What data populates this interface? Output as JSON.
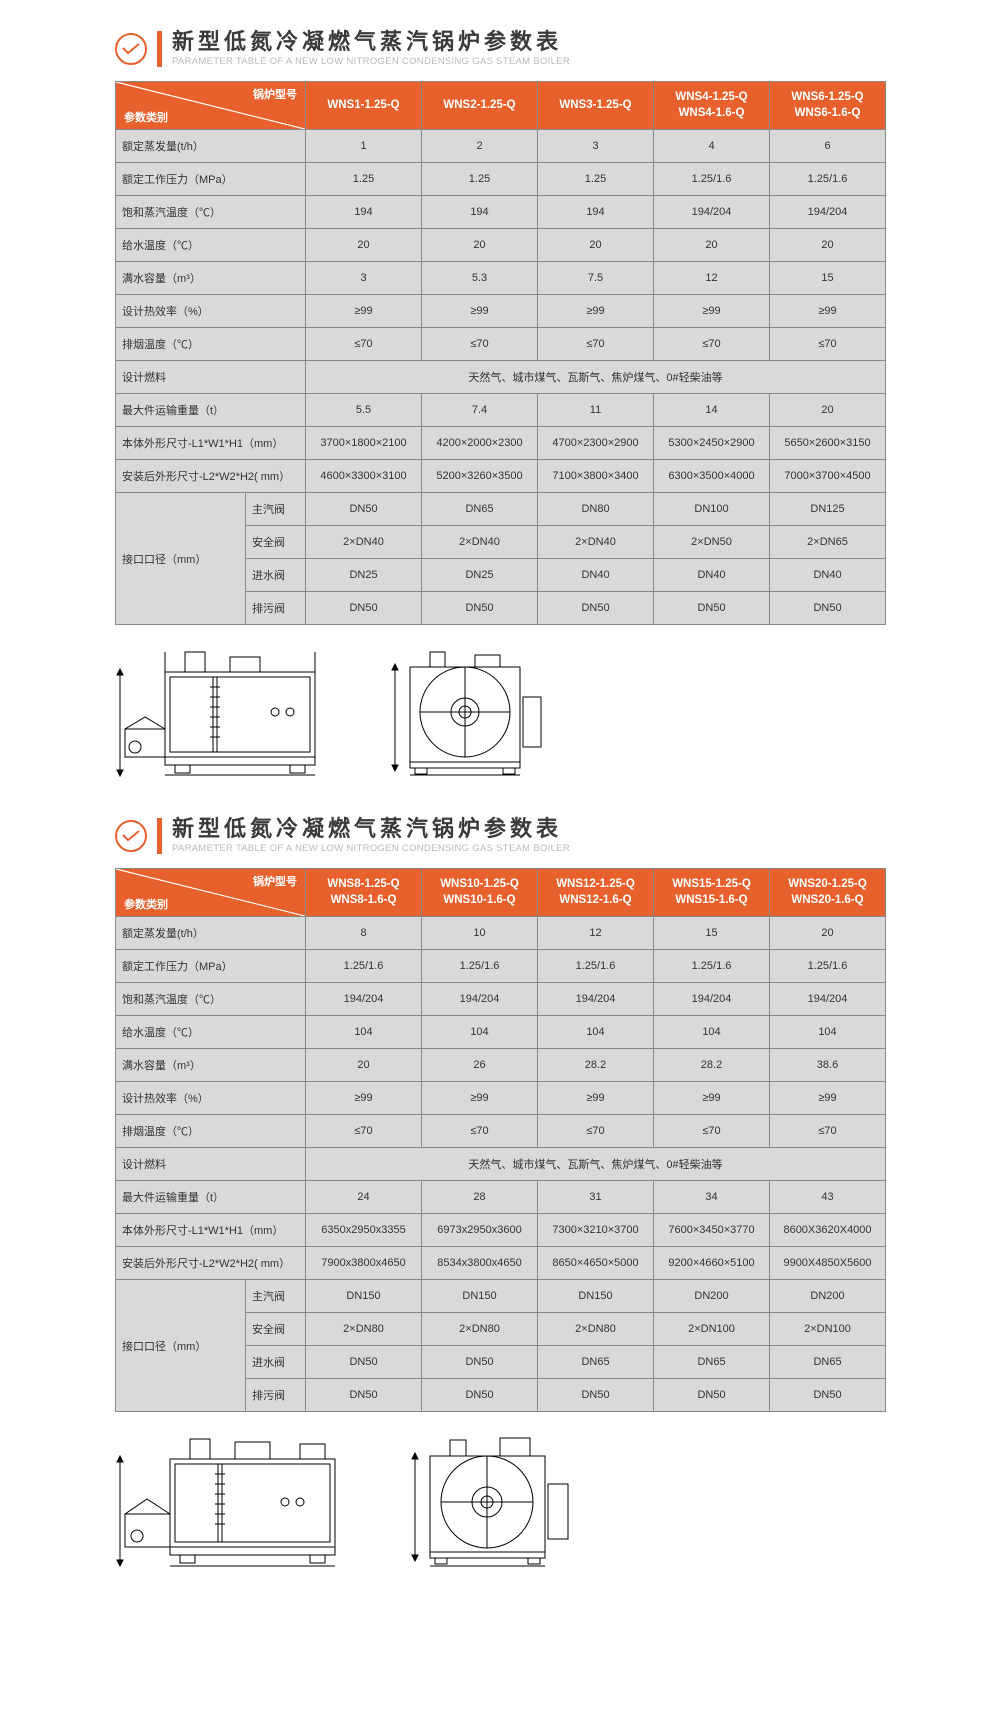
{
  "colors": {
    "accent": "#e8602c",
    "cell_bg": "#d9d9d9",
    "border": "#888888",
    "text": "#333333",
    "heading_text": "#3a3a3a",
    "subtitle": "#b9b9b9"
  },
  "heading": {
    "cn": "新型低氮冷凝燃气蒸汽锅炉参数表",
    "en": "PARAMETER TABLE OF A NEW LOW NITROGEN CONDENSING GAS STEAM BOILER",
    "corner_top": "锅炉型号",
    "corner_bottom": "参数类别"
  },
  "row_labels": {
    "evap": "额定蒸发量(t/h）",
    "pressure": "额定工作压力（MPa）",
    "sat_temp": "饱和蒸汽温度（℃）",
    "feed_temp": "给水温度（℃）",
    "water_vol": "满水容量（m³）",
    "efficiency": "设计热效率（%）",
    "exhaust_temp": "排烟温度（℃）",
    "fuel": "设计燃料",
    "max_weight": "最大件运输重量（t）",
    "body_dim": "本体外形尺寸-L1*W1*H1（mm）",
    "install_dim": "安装后外形尺寸-L2*W2*H2( mm）",
    "port": "接口口径（mm）",
    "steam_valve": "主汽阀",
    "safety_valve": "安全阀",
    "inlet_valve": "进水阀",
    "drain_valve": "排污阀"
  },
  "fuel_text": "天然气、城市煤气、瓦斯气、焦炉煤气、0#轻柴油等",
  "table1": {
    "models": [
      {
        "l1": "WNS1-1.25-Q",
        "l2": ""
      },
      {
        "l1": "WNS2-1.25-Q",
        "l2": ""
      },
      {
        "l1": "WNS3-1.25-Q",
        "l2": ""
      },
      {
        "l1": "WNS4-1.25-Q",
        "l2": "WNS4-1.6-Q"
      },
      {
        "l1": "WNS6-1.25-Q",
        "l2": "WNS6-1.6-Q"
      }
    ],
    "evap": [
      "1",
      "2",
      "3",
      "4",
      "6"
    ],
    "pressure": [
      "1.25",
      "1.25",
      "1.25",
      "1.25/1.6",
      "1.25/1.6"
    ],
    "sat_temp": [
      "194",
      "194",
      "194",
      "194/204",
      "194/204"
    ],
    "feed_temp": [
      "20",
      "20",
      "20",
      "20",
      "20"
    ],
    "water_vol": [
      "3",
      "5.3",
      "7.5",
      "12",
      "15"
    ],
    "efficiency": [
      "≥99",
      "≥99",
      "≥99",
      "≥99",
      "≥99"
    ],
    "exhaust_temp": [
      "≤70",
      "≤70",
      "≤70",
      "≤70",
      "≤70"
    ],
    "max_weight": [
      "5.5",
      "7.4",
      "11",
      "14",
      "20"
    ],
    "body_dim": [
      "3700×1800×2100",
      "4200×2000×2300",
      "4700×2300×2900",
      "5300×2450×2900",
      "5650×2600×3150"
    ],
    "install_dim": [
      "4600×3300×3100",
      "5200×3260×3500",
      "7100×3800×3400",
      "6300×3500×4000",
      "7000×3700×4500"
    ],
    "steam_valve": [
      "DN50",
      "DN65",
      "DN80",
      "DN100",
      "DN125"
    ],
    "safety_valve": [
      "2×DN40",
      "2×DN40",
      "2×DN40",
      "2×DN50",
      "2×DN65"
    ],
    "inlet_valve": [
      "DN25",
      "DN25",
      "DN40",
      "DN40",
      "DN40"
    ],
    "drain_valve": [
      "DN50",
      "DN50",
      "DN50",
      "DN50",
      "DN50"
    ]
  },
  "table2": {
    "models": [
      {
        "l1": "WNS8-1.25-Q",
        "l2": "WNS8-1.6-Q"
      },
      {
        "l1": "WNS10-1.25-Q",
        "l2": "WNS10-1.6-Q"
      },
      {
        "l1": "WNS12-1.25-Q",
        "l2": "WNS12-1.6-Q"
      },
      {
        "l1": "WNS15-1.25-Q",
        "l2": "WNS15-1.6-Q"
      },
      {
        "l1": "WNS20-1.25-Q",
        "l2": "WNS20-1.6-Q"
      }
    ],
    "evap": [
      "8",
      "10",
      "12",
      "15",
      "20"
    ],
    "pressure": [
      "1.25/1.6",
      "1.25/1.6",
      "1.25/1.6",
      "1.25/1.6",
      "1.25/1.6"
    ],
    "sat_temp": [
      "194/204",
      "194/204",
      "194/204",
      "194/204",
      "194/204"
    ],
    "feed_temp": [
      "104",
      "104",
      "104",
      "104",
      "104"
    ],
    "water_vol": [
      "20",
      "26",
      "28.2",
      "28.2",
      "38.6"
    ],
    "efficiency": [
      "≥99",
      "≥99",
      "≥99",
      "≥99",
      "≥99"
    ],
    "exhaust_temp": [
      "≤70",
      "≤70",
      "≤70",
      "≤70",
      "≤70"
    ],
    "max_weight": [
      "24",
      "28",
      "31",
      "34",
      "43"
    ],
    "body_dim": [
      "6350x2950x3355",
      "6973x2950x3600",
      "7300×3210×3700",
      "7600×3450×3770",
      "8600X3620X4000"
    ],
    "install_dim": [
      "7900x3800x4650",
      "8534x3800x4650",
      "8650×4650×5000",
      "9200×4660×5100",
      "9900X4850X5600"
    ],
    "steam_valve": [
      "DN150",
      "DN150",
      "DN150",
      "DN200",
      "DN200"
    ],
    "safety_valve": [
      "2×DN80",
      "2×DN80",
      "2×DN80",
      "2×DN100",
      "2×DN100"
    ],
    "inlet_valve": [
      "DN50",
      "DN50",
      "DN65",
      "DN65",
      "DN65"
    ],
    "drain_valve": [
      "DN50",
      "DN50",
      "DN50",
      "DN50",
      "DN50"
    ]
  },
  "col_widths": {
    "label": 130,
    "sub": 60,
    "data": 116
  },
  "typography": {
    "heading_cn_pt": 22,
    "heading_en_pt": 9.5,
    "table_pt": 11
  }
}
